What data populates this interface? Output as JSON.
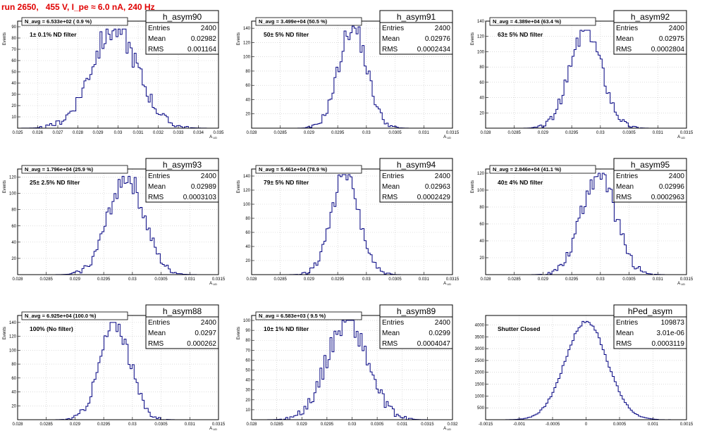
{
  "title": "run 2650,   455 V, I_pe ≈ 6.0 nA, 240 Hz",
  "colors": {
    "title": "#e00000",
    "filter_label": "#ff00ff",
    "hist_line": "#000080",
    "grid": "#c8c8c8"
  },
  "chart_data": [
    {
      "type": "bar",
      "name": "h_asym90",
      "stats": {
        "entries_label": "Entries",
        "entries": "2400",
        "mean_label": "Mean",
        "mean": "0.02982",
        "rms_label": "RMS",
        "rms": "0.001164"
      },
      "navg_label": "N_avg = 6.533e+02 ( 0.9 %)",
      "filter_label": "1± 0.1% ND filter",
      "ylabel": "Events",
      "xlabel": "A_UD",
      "xlim": [
        0.025,
        0.035
      ],
      "ylim": [
        0,
        95
      ],
      "x_ticks": [
        0.025,
        0.026,
        0.027,
        0.028,
        0.029,
        0.03,
        0.031,
        0.032,
        0.033,
        0.034,
        0.035
      ],
      "x_tick_labels": [
        "0.025",
        "0.026",
        "0.027",
        "0.028",
        "0.029",
        "0.03",
        "0.031",
        "0.032",
        "0.033",
        "0.034",
        "0.035"
      ],
      "y_ticks": [
        10,
        20,
        30,
        40,
        50,
        60,
        70,
        80,
        90
      ],
      "y_tick_labels": [
        "10",
        "20",
        "30",
        "40",
        "50",
        "60",
        "70",
        "80",
        "90"
      ],
      "mean_value": 0.02982,
      "rms_value": 0.001164,
      "peak": 88,
      "seed": 90
    },
    {
      "type": "bar",
      "name": "h_asym91",
      "stats": {
        "entries_label": "Entries",
        "entries": "2400",
        "mean_label": "Mean",
        "mean": "0.02976",
        "rms_label": "RMS",
        "rms": "0.0002434"
      },
      "navg_label": "N_avg = 3.499e+04 (50.5 %)",
      "filter_label": "50± 5% ND filter",
      "ylabel": "Events",
      "xlabel": "A_UD",
      "xlim": [
        0.028,
        0.0315
      ],
      "ylim": [
        0,
        150
      ],
      "x_ticks": [
        0.028,
        0.0285,
        0.029,
        0.0295,
        0.03,
        0.0305,
        0.031,
        0.0315
      ],
      "x_tick_labels": [
        "0.028",
        "0.0285",
        "0.029",
        "0.0295",
        "0.03",
        "0.0305",
        "0.031",
        "0.0315"
      ],
      "y_ticks": [
        20,
        40,
        60,
        80,
        100,
        120,
        140
      ],
      "y_tick_labels": [
        "20",
        "40",
        "60",
        "80",
        "100",
        "120",
        "140"
      ],
      "mean_value": 0.02976,
      "rms_value": 0.0002434,
      "peak": 143,
      "seed": 91
    },
    {
      "type": "bar",
      "name": "h_asym92",
      "stats": {
        "entries_label": "Entries",
        "entries": "2400",
        "mean_label": "Mean",
        "mean": "0.02975",
        "rms_label": "RMS",
        "rms": "0.0002804"
      },
      "navg_label": "N_avg = 4.389e+04 (63.4 %)",
      "filter_label": "63± 5% ND filter",
      "ylabel": "Events",
      "xlabel": "A_UD",
      "xlim": [
        0.028,
        0.0315
      ],
      "ylim": [
        0,
        140
      ],
      "x_ticks": [
        0.028,
        0.0285,
        0.029,
        0.0295,
        0.03,
        0.0305,
        0.031,
        0.0315
      ],
      "x_tick_labels": [
        "0.028",
        "0.0285",
        "0.029",
        "0.0295",
        "0.03",
        "0.0305",
        "0.031",
        "0.0315"
      ],
      "y_ticks": [
        20,
        40,
        60,
        80,
        100,
        120,
        140
      ],
      "y_tick_labels": [
        "20",
        "40",
        "60",
        "80",
        "100",
        "120",
        "140"
      ],
      "mean_value": 0.02975,
      "rms_value": 0.0002804,
      "peak": 128,
      "seed": 92
    },
    {
      "type": "bar",
      "name": "h_asym93",
      "stats": {
        "entries_label": "Entries",
        "entries": "2400",
        "mean_label": "Mean",
        "mean": "0.02989",
        "rms_label": "RMS",
        "rms": "0.0003103"
      },
      "navg_label": "N_avg = 1.796e+04 (25.9 %)",
      "filter_label": "25± 2.5% ND filter",
      "ylabel": "Events",
      "xlabel": "A_UD",
      "xlim": [
        0.028,
        0.0315
      ],
      "ylim": [
        0,
        130
      ],
      "x_ticks": [
        0.028,
        0.0285,
        0.029,
        0.0295,
        0.03,
        0.0305,
        0.031,
        0.0315
      ],
      "x_tick_labels": [
        "0.028",
        "0.0285",
        "0.029",
        "0.0295",
        "0.03",
        "0.0305",
        "0.031",
        "0.0315"
      ],
      "y_ticks": [
        20,
        40,
        60,
        80,
        100,
        120
      ],
      "y_tick_labels": [
        "20",
        "40",
        "60",
        "80",
        "100",
        "120"
      ],
      "mean_value": 0.02989,
      "rms_value": 0.0003103,
      "peak": 121,
      "seed": 93
    },
    {
      "type": "bar",
      "name": "h_asym94",
      "stats": {
        "entries_label": "Entries",
        "entries": "2400",
        "mean_label": "Mean",
        "mean": "0.02963",
        "rms_label": "RMS",
        "rms": "0.0002429"
      },
      "navg_label": "N_avg = 5.461e+04 (78.9 %)",
      "filter_label": "79± 5% ND filter",
      "ylabel": "Events",
      "xlabel": "A_UD",
      "xlim": [
        0.028,
        0.0315
      ],
      "ylim": [
        0,
        150
      ],
      "x_ticks": [
        0.028,
        0.0285,
        0.029,
        0.0295,
        0.03,
        0.0305,
        0.031,
        0.0315
      ],
      "x_tick_labels": [
        "0.028",
        "0.0285",
        "0.029",
        "0.0295",
        "0.03",
        "0.0305",
        "0.031",
        "0.0315"
      ],
      "y_ticks": [
        20,
        40,
        60,
        80,
        100,
        120,
        140
      ],
      "y_tick_labels": [
        "20",
        "40",
        "60",
        "80",
        "100",
        "120",
        "140"
      ],
      "mean_value": 0.02963,
      "rms_value": 0.0002429,
      "peak": 142,
      "seed": 94
    },
    {
      "type": "bar",
      "name": "h_asym95",
      "stats": {
        "entries_label": "Entries",
        "entries": "2400",
        "mean_label": "Mean",
        "mean": "0.02996",
        "rms_label": "RMS",
        "rms": "0.0002963"
      },
      "navg_label": "N_avg = 2.846e+04 (41.1 %)",
      "filter_label": "40± 4% ND filter",
      "ylabel": "Events",
      "xlabel": "A_UD",
      "xlim": [
        0.028,
        0.0315
      ],
      "ylim": [
        0,
        125
      ],
      "x_ticks": [
        0.028,
        0.0285,
        0.029,
        0.0295,
        0.03,
        0.0305,
        0.031,
        0.0315
      ],
      "x_tick_labels": [
        "0.028",
        "0.0285",
        "0.029",
        "0.0295",
        "0.03",
        "0.0305",
        "0.031",
        "0.0315"
      ],
      "y_ticks": [
        20,
        40,
        60,
        80,
        100,
        120
      ],
      "y_tick_labels": [
        "20",
        "40",
        "60",
        "80",
        "100",
        "120"
      ],
      "mean_value": 0.02996,
      "rms_value": 0.0002963,
      "peak": 120,
      "seed": 95
    },
    {
      "type": "bar",
      "name": "h_asym88",
      "stats": {
        "entries_label": "Entries",
        "entries": "2400",
        "mean_label": "Mean",
        "mean": "0.0297",
        "rms_label": "RMS",
        "rms": "0.000262"
      },
      "navg_label": "N_avg = 6.925e+04 (100.0 %)",
      "filter_label": "100% (No filter)",
      "ylabel": "Events",
      "xlabel": "A_UD",
      "xlim": [
        0.028,
        0.0315
      ],
      "ylim": [
        0,
        150
      ],
      "x_ticks": [
        0.028,
        0.0285,
        0.029,
        0.0295,
        0.03,
        0.0305,
        0.031,
        0.0315
      ],
      "x_tick_labels": [
        "0.028",
        "0.0285",
        "0.029",
        "0.0295",
        "0.03",
        "0.0305",
        "0.031",
        "0.0315"
      ],
      "y_ticks": [
        20,
        40,
        60,
        80,
        100,
        120,
        140
      ],
      "y_tick_labels": [
        "20",
        "40",
        "60",
        "80",
        "100",
        "120",
        "140"
      ],
      "mean_value": 0.0297,
      "rms_value": 0.000262,
      "peak": 140,
      "seed": 88
    },
    {
      "type": "bar",
      "name": "h_asym89",
      "stats": {
        "entries_label": "Entries",
        "entries": "2400",
        "mean_label": "Mean",
        "mean": "0.0299",
        "rms_label": "RMS",
        "rms": "0.0004047"
      },
      "navg_label": "N_avg = 6.583e+03 ( 9.5 %)",
      "filter_label": "10± 1% ND filter",
      "ylabel": "Events",
      "xlabel": "A_UD",
      "xlim": [
        0.028,
        0.032
      ],
      "ylim": [
        0,
        105
      ],
      "x_ticks": [
        0.028,
        0.0285,
        0.029,
        0.0295,
        0.03,
        0.0305,
        0.031,
        0.0315,
        0.032
      ],
      "x_tick_labels": [
        "0.028",
        "0.0285",
        "0.029",
        "0.0295",
        "0.03",
        "0.0305",
        "0.031",
        "0.0315",
        "0.032"
      ],
      "y_ticks": [
        10,
        20,
        30,
        40,
        50,
        60,
        70,
        80,
        90,
        100
      ],
      "y_tick_labels": [
        "10",
        "20",
        "30",
        "40",
        "50",
        "60",
        "70",
        "80",
        "90",
        "100"
      ],
      "mean_value": 0.0299,
      "rms_value": 0.0004047,
      "peak": 100,
      "seed": 89
    },
    {
      "type": "bar",
      "name": "hPed_asym",
      "stats": {
        "entries_label": "Entries",
        "entries": "109873",
        "mean_label": "Mean",
        "mean": "3.01e-06",
        "rms_label": "RMS",
        "rms": "0.0003119"
      },
      "navg_label": "",
      "filter_label": "Shutter Closed",
      "ylabel": "",
      "xlabel": "",
      "xlim": [
        -0.0015,
        0.0015
      ],
      "ylim": [
        0,
        4400
      ],
      "x_ticks": [
        -0.0015,
        -0.001,
        -0.0005,
        0,
        0.0005,
        0.001,
        0.0015
      ],
      "x_tick_labels": [
        "-0.0015",
        "-0.001",
        "-0.0005",
        "0",
        "0.0005",
        "0.001",
        "0.0015"
      ],
      "y_ticks": [
        500,
        1000,
        1500,
        2000,
        2500,
        3000,
        3500,
        4000
      ],
      "y_tick_labels": [
        "500",
        "1000",
        "1500",
        "2000",
        "2500",
        "3000",
        "3500",
        "4000"
      ],
      "mean_value": 3.01e-06,
      "rms_value": 0.0003119,
      "peak": 4150,
      "seed": 7
    }
  ]
}
